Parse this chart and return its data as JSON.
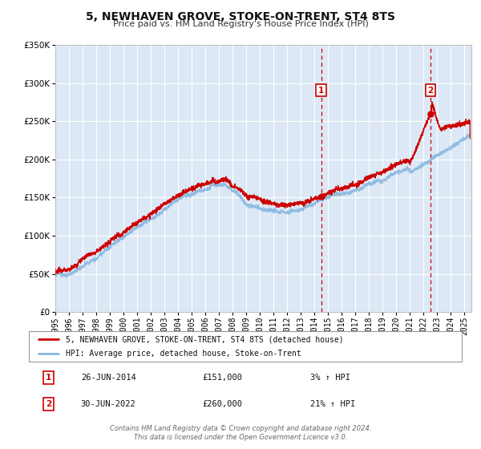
{
  "title": "5, NEWHAVEN GROVE, STOKE-ON-TRENT, ST4 8TS",
  "subtitle": "Price paid vs. HM Land Registry's House Price Index (HPI)",
  "ylim": [
    0,
    350000
  ],
  "yticks": [
    0,
    50000,
    100000,
    150000,
    200000,
    250000,
    300000,
    350000
  ],
  "ytick_labels": [
    "£0",
    "£50K",
    "£100K",
    "£150K",
    "£200K",
    "£250K",
    "£300K",
    "£350K"
  ],
  "xlim_start": 1995.0,
  "xlim_end": 2025.5,
  "xtick_years": [
    1995,
    1996,
    1997,
    1998,
    1999,
    2000,
    2001,
    2002,
    2003,
    2004,
    2005,
    2006,
    2007,
    2008,
    2009,
    2010,
    2011,
    2012,
    2013,
    2014,
    2015,
    2016,
    2017,
    2018,
    2019,
    2020,
    2021,
    2022,
    2023,
    2024,
    2025
  ],
  "background_color": "#ffffff",
  "plot_bg_color": "#dce8f5",
  "grid_color": "#ffffff",
  "sale1_x": 2014.49,
  "sale1_y": 151000,
  "sale1_date": "26-JUN-2014",
  "sale1_price": "£151,000",
  "sale1_pct": "3% ↑ HPI",
  "sale2_x": 2022.49,
  "sale2_y": 260000,
  "sale2_date": "30-JUN-2022",
  "sale2_price": "£260,000",
  "sale2_pct": "21% ↑ HPI",
  "vline_color": "#cc0000",
  "hpi_line_color": "#88b8e0",
  "price_line_color": "#cc0000",
  "legend_label_price": "5, NEWHAVEN GROVE, STOKE-ON-TRENT, ST4 8TS (detached house)",
  "legend_label_hpi": "HPI: Average price, detached house, Stoke-on-Trent",
  "footer1": "Contains HM Land Registry data © Crown copyright and database right 2024.",
  "footer2": "This data is licensed under the Open Government Licence v3.0."
}
